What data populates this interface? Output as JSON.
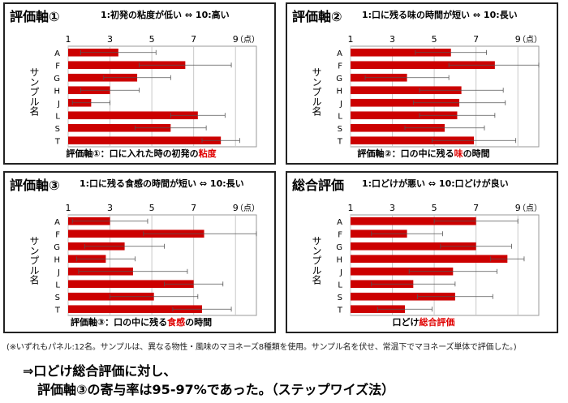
{
  "panels": [
    {
      "title": "評価軸①",
      "scale": "1:初発の粘度が低い ⇔ 10:高い",
      "caption_prefix": "評価軸①：口に入れた時の初発の",
      "caption_highlight": "粘度",
      "caption_suffix": ""
    },
    {
      "title": "評価軸②",
      "scale": "1:口に残る味の時間が短い ⇔ 10:長い",
      "caption_prefix": "評価軸②：口の中に残る",
      "caption_highlight": "味",
      "caption_suffix": "の時間"
    },
    {
      "title": "評価軸③",
      "scale": "1:口に残る食感の時間が短い ⇔ 10:長い",
      "caption_prefix": "評価軸③：口の中に残る",
      "caption_highlight": "食感",
      "caption_suffix": "の時間"
    },
    {
      "title": "総合評価",
      "scale": "1:口どけが悪い ⇔ 10:口どけが良い",
      "caption_prefix": "口どけ",
      "caption_highlight": "総合評価",
      "caption_suffix": ""
    }
  ],
  "chart_data": [
    {
      "type": "bar",
      "orientation": "horizontal",
      "categories": [
        "A",
        "F",
        "G",
        "H",
        "J",
        "L",
        "S",
        "T"
      ],
      "values": [
        3.4,
        6.6,
        4.3,
        3.0,
        2.1,
        7.2,
        5.9,
        8.3
      ],
      "errors": [
        1.8,
        2.2,
        1.6,
        1.4,
        0.9,
        1.3,
        1.7,
        0.9
      ],
      "xticks": [
        "1",
        "3",
        "5",
        "7",
        "9"
      ],
      "xlim": [
        1,
        10
      ],
      "xunit": "（点）",
      "ylabel": "サンプル名",
      "grid": true,
      "bar_color": "#cc0000"
    },
    {
      "type": "bar",
      "orientation": "horizontal",
      "categories": [
        "A",
        "F",
        "G",
        "H",
        "J",
        "L",
        "S",
        "T"
      ],
      "values": [
        5.8,
        7.9,
        3.7,
        6.3,
        6.2,
        6.1,
        5.5,
        6.9
      ],
      "errors": [
        1.7,
        2.2,
        2.0,
        2.0,
        2.2,
        1.8,
        1.9,
        2.0
      ],
      "xticks": [
        "1",
        "3",
        "5",
        "7",
        "9"
      ],
      "xlim": [
        1,
        10
      ],
      "xunit": "（点）",
      "ylabel": "サンプル名",
      "grid": true,
      "bar_color": "#cc0000"
    },
    {
      "type": "bar",
      "orientation": "horizontal",
      "categories": [
        "A",
        "F",
        "G",
        "H",
        "J",
        "L",
        "S",
        "T"
      ],
      "values": [
        3.0,
        7.5,
        3.7,
        2.8,
        4.1,
        7.0,
        5.1,
        7.4
      ],
      "errors": [
        1.8,
        2.9,
        1.9,
        1.4,
        2.6,
        1.4,
        2.1,
        1.4
      ],
      "xticks": [
        "1",
        "3",
        "5",
        "7",
        "9"
      ],
      "xlim": [
        1,
        10
      ],
      "xunit": "（点）",
      "ylabel": "サンプル名",
      "grid": true,
      "bar_color": "#cc0000"
    },
    {
      "type": "bar",
      "orientation": "horizontal",
      "categories": [
        "A",
        "F",
        "G",
        "H",
        "J",
        "L",
        "S",
        "T"
      ],
      "values": [
        7.0,
        3.7,
        7.0,
        8.5,
        5.9,
        4.0,
        6.0,
        3.6
      ],
      "errors": [
        2.0,
        1.7,
        1.7,
        0.8,
        2.1,
        2.0,
        1.8,
        1.3
      ],
      "xticks": [
        "1",
        "3",
        "5",
        "7",
        "9"
      ],
      "xlim": [
        1,
        10
      ],
      "xunit": "（点）",
      "ylabel": "サンプル名",
      "grid": true,
      "bar_color": "#cc0000"
    }
  ],
  "footnote": "(※いずれもパネル:12名。サンプルは、異なる物性・風味のマヨネーズ8種類を使用。サンプル名を伏せ、常温下でマヨネーズ単体で評価した。)",
  "conclusion": {
    "line1": "⇒口どけ総合評価に対し、",
    "line2": "評価軸③の寄与率は95-97%であった。（ステップワイズ法）"
  }
}
